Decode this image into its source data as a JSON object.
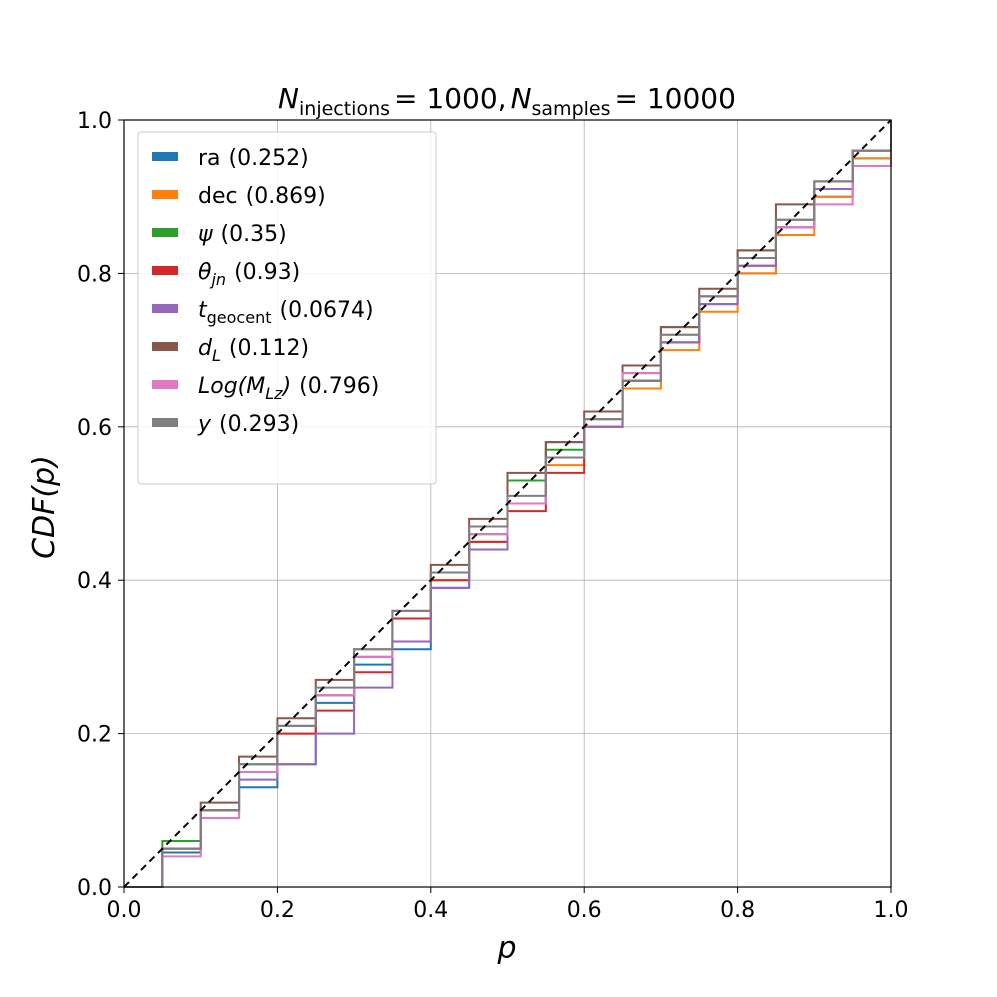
{
  "chart_data": {
    "type": "line",
    "title": {
      "n_injections_label": "N",
      "n_injections_sub": "injections",
      "n_injections_value": "= 1000,",
      "n_samples_label": "N",
      "n_samples_sub": "samples",
      "n_samples_value": "= 10000"
    },
    "xlabel": "p",
    "ylabel": "CDF(p)",
    "xlim": [
      0,
      1
    ],
    "ylim": [
      0,
      1
    ],
    "xticks": [
      "0.0",
      "0.2",
      "0.4",
      "0.6",
      "0.8",
      "1.0"
    ],
    "yticks": [
      "0.0",
      "0.2",
      "0.4",
      "0.6",
      "0.8",
      "1.0"
    ],
    "grid": true,
    "legend_position": "upper-left",
    "reference_line": {
      "style": "dashed",
      "color": "#000000",
      "x": [
        0,
        1
      ],
      "y": [
        0,
        1
      ]
    },
    "series": [
      {
        "name": "ra",
        "name_sub": "",
        "pvalue": "(0.252)",
        "color": "#1f77b4",
        "italic": false,
        "x": [
          0,
          0.05,
          0.1,
          0.15,
          0.2,
          0.25,
          0.3,
          0.35,
          0.4,
          0.45,
          0.5,
          0.55,
          0.6,
          0.65,
          0.7,
          0.75,
          0.8,
          0.85,
          0.9,
          0.95,
          1.0
        ],
        "y": [
          0,
          0.045,
          0.09,
          0.13,
          0.16,
          0.24,
          0.29,
          0.31,
          0.39,
          0.46,
          0.5,
          0.58,
          0.61,
          0.66,
          0.71,
          0.76,
          0.8,
          0.86,
          0.9,
          0.95,
          0.99
        ]
      },
      {
        "name": "dec",
        "name_sub": "",
        "pvalue": "(0.869)",
        "color": "#ff7f0e",
        "italic": false,
        "x": [
          0,
          0.05,
          0.1,
          0.15,
          0.2,
          0.25,
          0.3,
          0.35,
          0.4,
          0.45,
          0.5,
          0.55,
          0.6,
          0.65,
          0.7,
          0.75,
          0.8,
          0.85,
          0.9,
          0.95,
          1.0
        ],
        "y": [
          0,
          0.05,
          0.1,
          0.15,
          0.2,
          0.25,
          0.3,
          0.35,
          0.4,
          0.45,
          0.5,
          0.55,
          0.6,
          0.65,
          0.7,
          0.75,
          0.8,
          0.85,
          0.9,
          0.95,
          1.0
        ]
      },
      {
        "name": "ψ",
        "name_sub": "",
        "pvalue": "(0.35)",
        "color": "#2ca02c",
        "italic": true,
        "x": [
          0,
          0.05,
          0.1,
          0.15,
          0.2,
          0.25,
          0.3,
          0.35,
          0.4,
          0.45,
          0.5,
          0.55,
          0.6,
          0.65,
          0.7,
          0.75,
          0.8,
          0.85,
          0.9,
          0.95,
          1.0
        ],
        "y": [
          0,
          0.06,
          0.1,
          0.16,
          0.21,
          0.25,
          0.3,
          0.35,
          0.41,
          0.46,
          0.53,
          0.57,
          0.61,
          0.67,
          0.73,
          0.77,
          0.83,
          0.87,
          0.91,
          0.96,
          1.0
        ]
      },
      {
        "name": "θ",
        "name_sub": "jn",
        "pvalue": "(0.93)",
        "color": "#d62728",
        "italic": true,
        "x": [
          0,
          0.05,
          0.1,
          0.15,
          0.2,
          0.25,
          0.3,
          0.35,
          0.4,
          0.45,
          0.5,
          0.55,
          0.6,
          0.65,
          0.7,
          0.75,
          0.8,
          0.85,
          0.9,
          0.95,
          1.0
        ],
        "y": [
          0,
          0.05,
          0.1,
          0.15,
          0.2,
          0.23,
          0.28,
          0.35,
          0.4,
          0.45,
          0.49,
          0.54,
          0.6,
          0.66,
          0.71,
          0.77,
          0.81,
          0.86,
          0.91,
          0.96,
          1.0
        ]
      },
      {
        "name": "t",
        "name_sub": "geocent",
        "pvalue": "(0.0674)",
        "color": "#9467bd",
        "italic": true,
        "x": [
          0,
          0.05,
          0.1,
          0.15,
          0.2,
          0.25,
          0.3,
          0.35,
          0.4,
          0.45,
          0.5,
          0.55,
          0.6,
          0.65,
          0.7,
          0.75,
          0.8,
          0.85,
          0.9,
          0.95,
          1.0
        ],
        "y": [
          0,
          0.05,
          0.09,
          0.14,
          0.16,
          0.2,
          0.26,
          0.32,
          0.39,
          0.44,
          0.5,
          0.56,
          0.6,
          0.66,
          0.71,
          0.76,
          0.81,
          0.86,
          0.91,
          0.96,
          1.0
        ]
      },
      {
        "name": "d",
        "name_sub": "L",
        "pvalue": "(0.112)",
        "color": "#8c564b",
        "italic": true,
        "x": [
          0,
          0.05,
          0.1,
          0.15,
          0.2,
          0.25,
          0.3,
          0.35,
          0.4,
          0.45,
          0.5,
          0.55,
          0.6,
          0.65,
          0.7,
          0.75,
          0.8,
          0.85,
          0.9,
          0.95,
          1.0
        ],
        "y": [
          0,
          0.05,
          0.11,
          0.17,
          0.22,
          0.27,
          0.31,
          0.36,
          0.42,
          0.48,
          0.54,
          0.58,
          0.62,
          0.68,
          0.73,
          0.78,
          0.83,
          0.89,
          0.92,
          0.96,
          1.0
        ]
      },
      {
        "name": "Log(M",
        "name_sub": "Lz",
        "name_suffix": ")",
        "pvalue": "(0.796)",
        "color": "#e377c2",
        "italic": true,
        "x": [
          0,
          0.05,
          0.1,
          0.15,
          0.2,
          0.25,
          0.3,
          0.35,
          0.4,
          0.45,
          0.5,
          0.55,
          0.6,
          0.65,
          0.7,
          0.75,
          0.8,
          0.85,
          0.9,
          0.95,
          1.0
        ],
        "y": [
          0,
          0.04,
          0.09,
          0.15,
          0.21,
          0.25,
          0.3,
          0.36,
          0.41,
          0.46,
          0.5,
          0.56,
          0.61,
          0.67,
          0.72,
          0.77,
          0.82,
          0.86,
          0.89,
          0.94,
          1.0
        ]
      },
      {
        "name": "y",
        "name_sub": "",
        "pvalue": "(0.293)",
        "color": "#7f7f7f",
        "italic": true,
        "x": [
          0,
          0.05,
          0.1,
          0.15,
          0.2,
          0.25,
          0.3,
          0.35,
          0.4,
          0.45,
          0.5,
          0.55,
          0.6,
          0.65,
          0.7,
          0.75,
          0.8,
          0.85,
          0.9,
          0.95,
          1.0
        ],
        "y": [
          0,
          0.05,
          0.1,
          0.16,
          0.21,
          0.26,
          0.31,
          0.36,
          0.41,
          0.47,
          0.51,
          0.56,
          0.61,
          0.66,
          0.72,
          0.77,
          0.82,
          0.87,
          0.92,
          0.96,
          1.0
        ]
      }
    ]
  }
}
